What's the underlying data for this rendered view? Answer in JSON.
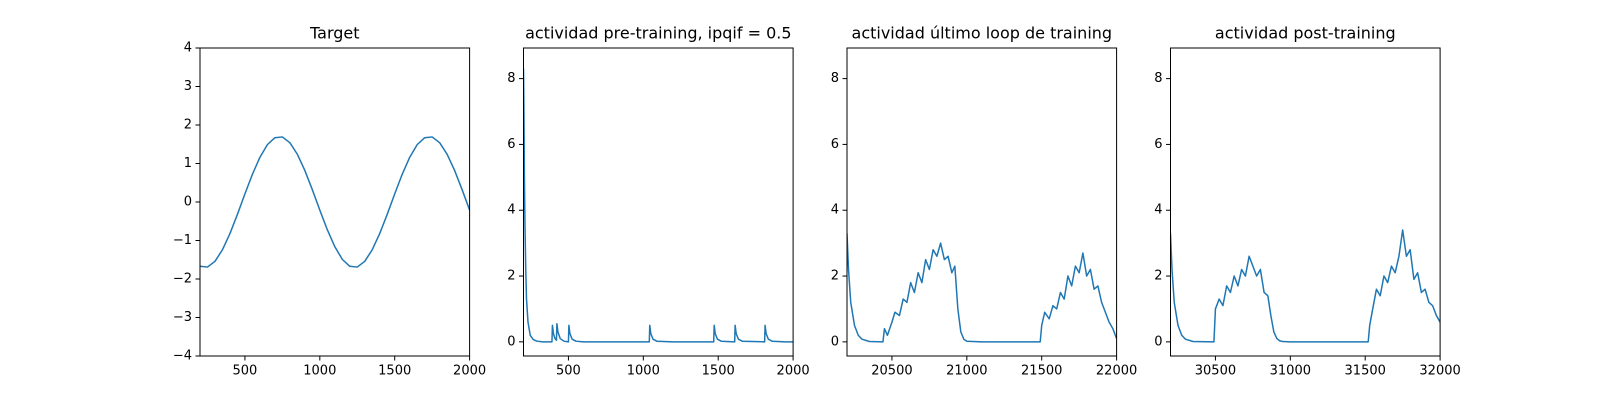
{
  "chart_data": [
    {
      "type": "line",
      "title": "Target",
      "color": "#1f77b4",
      "x": [
        200,
        250,
        300,
        350,
        400,
        450,
        500,
        550,
        600,
        650,
        700,
        750,
        800,
        850,
        900,
        950,
        1000,
        1050,
        1100,
        1150,
        1200,
        1250,
        1300,
        1350,
        1400,
        1450,
        1500,
        1550,
        1600,
        1650,
        1700,
        1750,
        1800,
        1850,
        1900,
        1950,
        2000
      ],
      "values": [
        -1.67,
        -1.69,
        -1.54,
        -1.24,
        -0.82,
        -0.32,
        0.21,
        0.72,
        1.16,
        1.49,
        1.67,
        1.69,
        1.54,
        1.24,
        0.82,
        0.32,
        -0.21,
        -0.72,
        -1.16,
        -1.49,
        -1.67,
        -1.69,
        -1.54,
        -1.24,
        -0.82,
        -0.32,
        0.21,
        0.72,
        1.16,
        1.49,
        1.67,
        1.69,
        1.54,
        1.24,
        0.82,
        0.32,
        -0.21
      ],
      "xlim": [
        200,
        2000
      ],
      "xticks": [
        500,
        1000,
        1500,
        2000
      ],
      "ylim": [
        -4,
        4
      ],
      "yticks": [
        {
          "value": -4,
          "label": "−4"
        },
        {
          "value": -3,
          "label": "−3"
        },
        {
          "value": -2,
          "label": "−2"
        },
        {
          "value": -1,
          "label": "−1"
        },
        0,
        1,
        2,
        3,
        4
      ]
    },
    {
      "type": "line",
      "title": "actividad pre-training, ipqif = 0.5",
      "color": "#1f77b4",
      "x": [
        200,
        203,
        206,
        210,
        215,
        220,
        230,
        245,
        265,
        290,
        330,
        390,
        393,
        400,
        410,
        420,
        423,
        430,
        445,
        470,
        500,
        503,
        510,
        525,
        550,
        600,
        800,
        1040,
        1043,
        1050,
        1065,
        1090,
        1200,
        1470,
        1473,
        1480,
        1495,
        1520,
        1610,
        1613,
        1620,
        1635,
        1660,
        1810,
        1813,
        1820,
        1835,
        1860,
        1950,
        2000
      ],
      "values": [
        8.3,
        7.0,
        5.0,
        3.5,
        2.2,
        1.3,
        0.6,
        0.2,
        0.07,
        0.02,
        0,
        0,
        0.5,
        0.25,
        0.1,
        0.05,
        0.55,
        0.3,
        0.1,
        0.02,
        0,
        0.5,
        0.25,
        0.08,
        0.02,
        0,
        0,
        0,
        0.5,
        0.25,
        0.08,
        0.02,
        0,
        0,
        0.5,
        0.25,
        0.08,
        0.02,
        0,
        0.5,
        0.25,
        0.08,
        0.02,
        0,
        0.5,
        0.25,
        0.08,
        0.02,
        0,
        0
      ],
      "xlim": [
        200,
        2000
      ],
      "xticks": [
        500,
        1000,
        1500,
        2000
      ],
      "ylim": [
        -0.43,
        8.93
      ],
      "yticks": [
        0,
        2,
        4,
        6,
        8
      ]
    },
    {
      "type": "line",
      "title": "actividad último loop de training",
      "color": "#1f77b4",
      "x": [
        20200,
        20210,
        20225,
        20250,
        20275,
        20300,
        20350,
        20440,
        20450,
        20470,
        20500,
        20520,
        20550,
        20575,
        20600,
        20625,
        20650,
        20675,
        20700,
        20725,
        20750,
        20775,
        20800,
        20825,
        20850,
        20875,
        20900,
        20920,
        20940,
        20960,
        20980,
        21000,
        21100,
        21200,
        21300,
        21400,
        21490,
        21500,
        21520,
        21550,
        21575,
        21600,
        21625,
        21650,
        21675,
        21700,
        21725,
        21750,
        21775,
        21800,
        21825,
        21850,
        21875,
        21900,
        21925,
        21950,
        21975,
        22000
      ],
      "values": [
        3.3,
        2.2,
        1.2,
        0.5,
        0.2,
        0.08,
        0.01,
        0,
        0.4,
        0.2,
        0.6,
        0.9,
        0.8,
        1.3,
        1.2,
        1.8,
        1.5,
        2.1,
        1.8,
        2.5,
        2.2,
        2.8,
        2.6,
        3.0,
        2.5,
        2.6,
        2.1,
        2.3,
        1.0,
        0.3,
        0.08,
        0.02,
        0,
        0,
        0,
        0,
        0,
        0.5,
        0.9,
        0.7,
        1.1,
        1.0,
        1.5,
        1.3,
        2.0,
        1.7,
        2.3,
        2.1,
        2.7,
        2.0,
        2.2,
        1.6,
        1.7,
        1.2,
        0.9,
        0.6,
        0.4,
        0.1
      ],
      "xlim": [
        20200,
        22000
      ],
      "xticks": [
        20500,
        21000,
        21500,
        22000
      ],
      "ylim": [
        -0.43,
        8.93
      ],
      "yticks": [
        0,
        2,
        4,
        6,
        8
      ]
    },
    {
      "type": "line",
      "title": "actividad post-training",
      "color": "#1f77b4",
      "x": [
        30200,
        30210,
        30225,
        30250,
        30275,
        30300,
        30350,
        30490,
        30500,
        30525,
        30550,
        30575,
        30600,
        30625,
        30650,
        30675,
        30700,
        30725,
        30750,
        30775,
        30800,
        30825,
        30850,
        30870,
        30890,
        30910,
        30930,
        30950,
        31000,
        31100,
        31200,
        31300,
        31400,
        31520,
        31530,
        31550,
        31575,
        31600,
        31625,
        31650,
        31675,
        31700,
        31725,
        31750,
        31775,
        31800,
        31825,
        31850,
        31875,
        31900,
        31925,
        31950,
        31975,
        32000
      ],
      "values": [
        3.3,
        2.2,
        1.2,
        0.5,
        0.2,
        0.08,
        0.01,
        0,
        1.0,
        1.3,
        1.1,
        1.7,
        1.5,
        2.0,
        1.7,
        2.2,
        2.0,
        2.6,
        2.3,
        2.0,
        2.2,
        1.5,
        1.4,
        0.8,
        0.3,
        0.1,
        0.03,
        0.01,
        0,
        0,
        0,
        0,
        0,
        0,
        0.5,
        1.0,
        1.6,
        1.4,
        2.0,
        1.8,
        2.3,
        2.1,
        2.6,
        3.4,
        2.6,
        2.8,
        1.9,
        2.1,
        1.5,
        1.6,
        1.2,
        1.1,
        0.8,
        0.6
      ],
      "xlim": [
        30200,
        32000
      ],
      "xticks": [
        30500,
        31000,
        31500,
        32000
      ],
      "ylim": [
        -0.43,
        8.93
      ],
      "yticks": [
        0,
        2,
        4,
        6,
        8
      ]
    }
  ]
}
